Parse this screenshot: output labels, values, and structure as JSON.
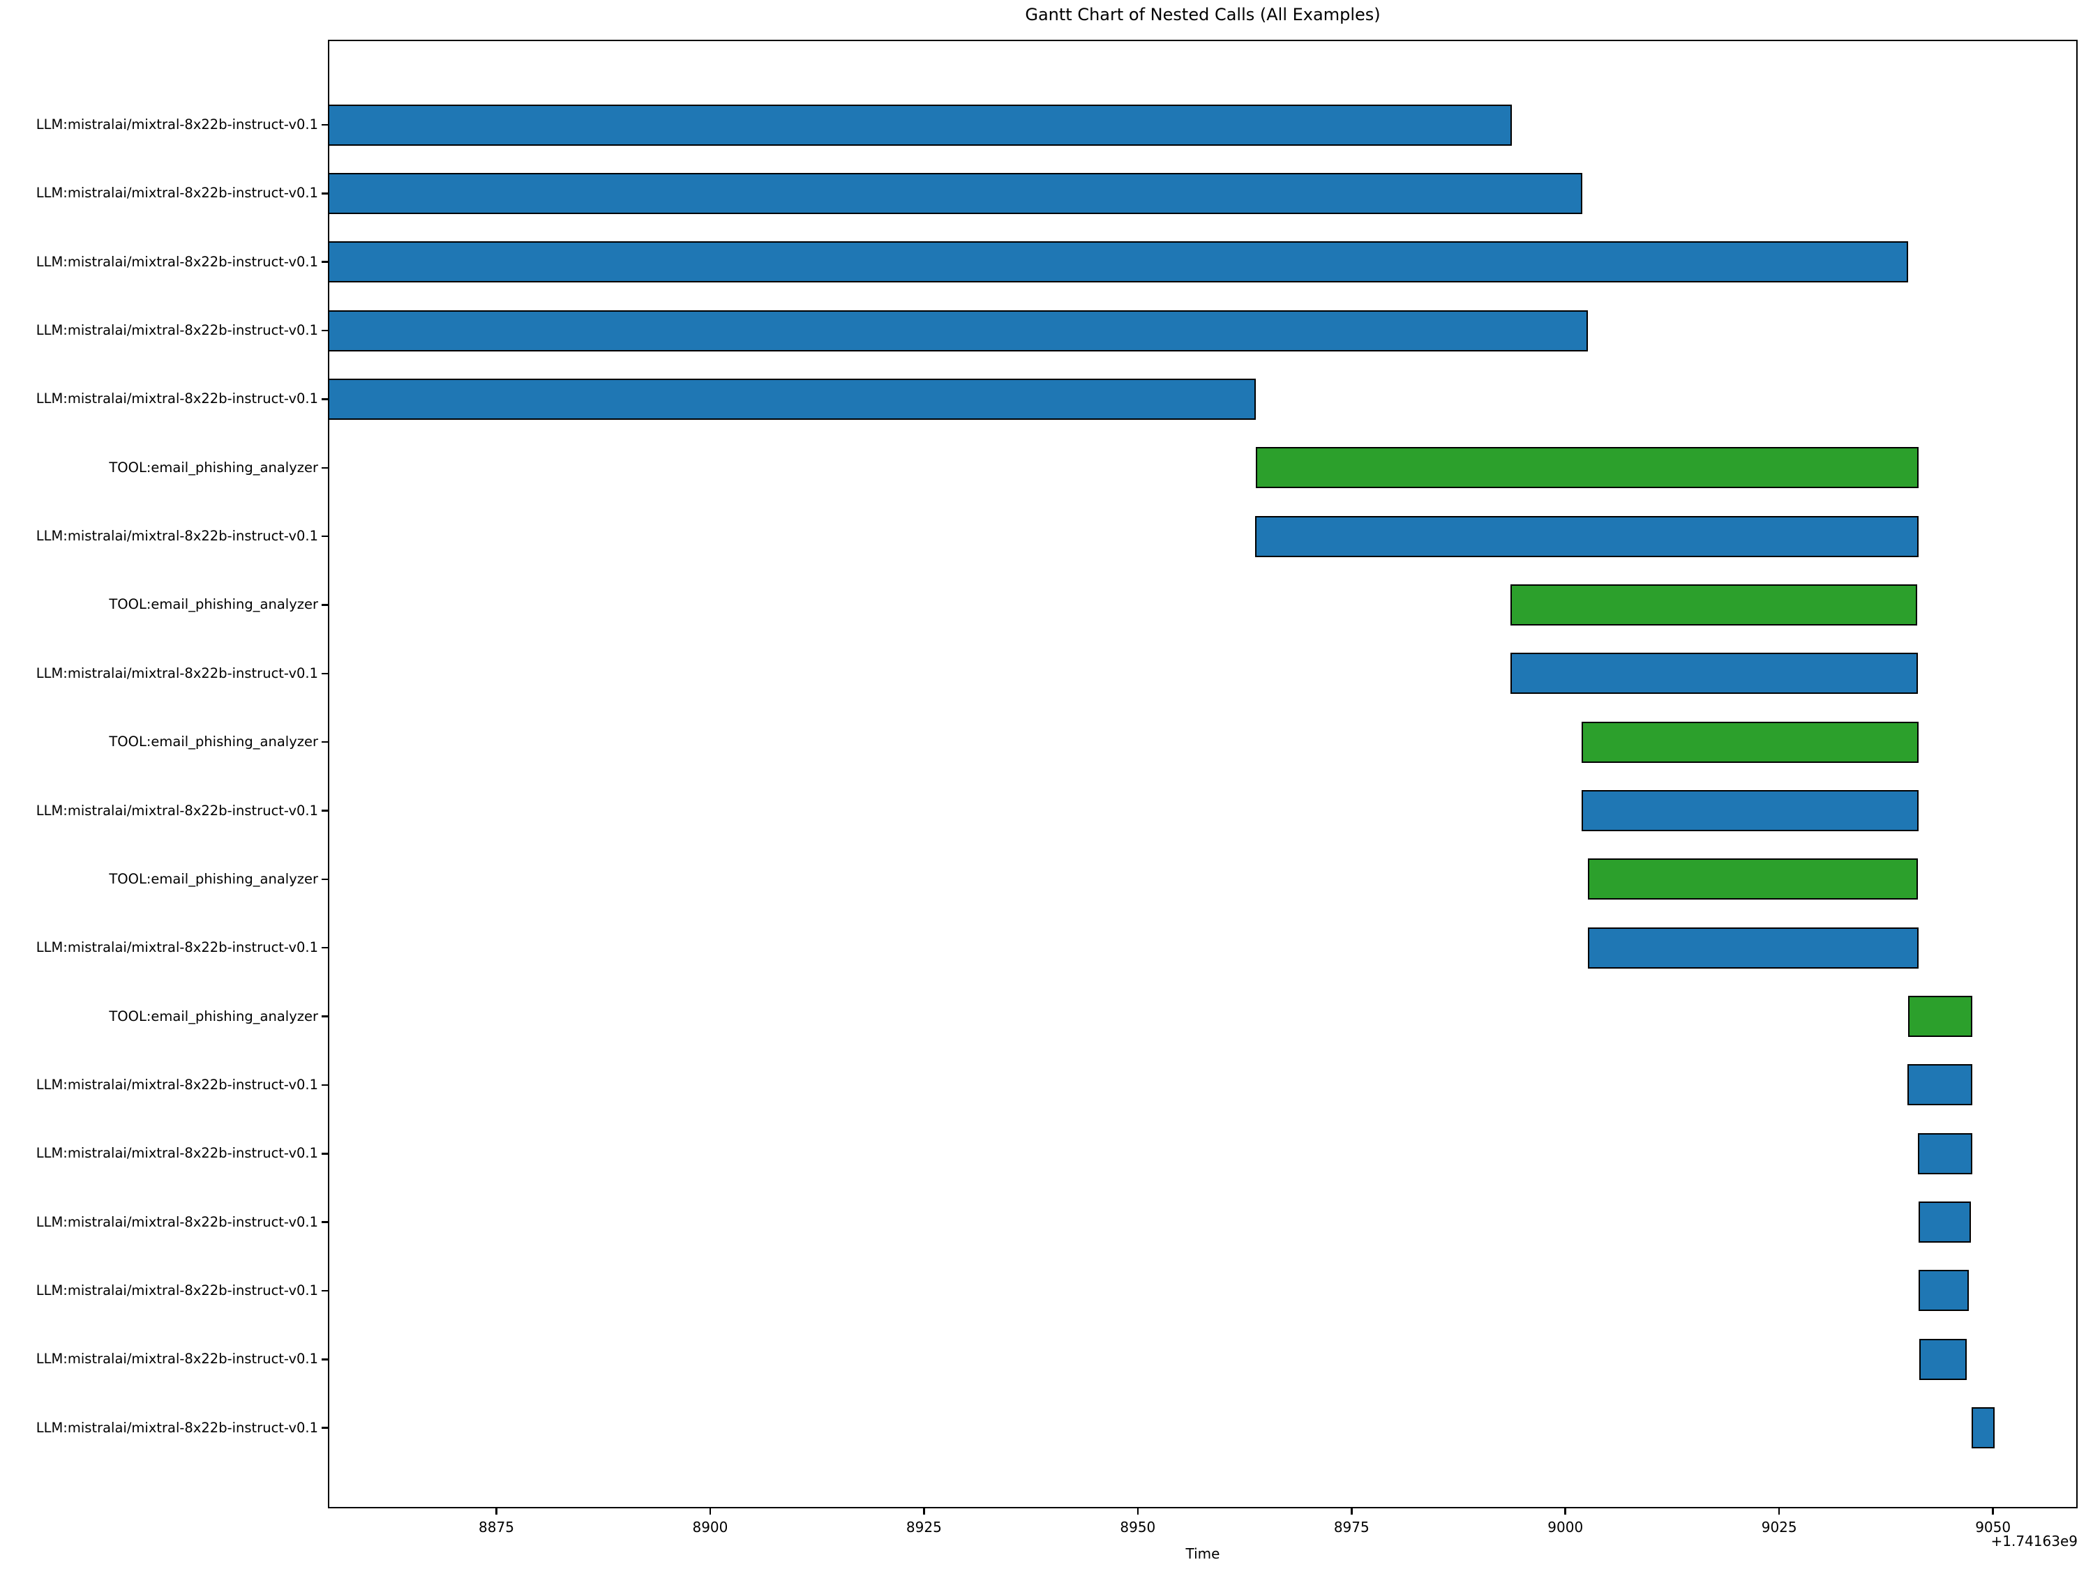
{
  "figure": {
    "title": "Gantt Chart of Nested Calls (All Examples)",
    "xlabel": "Time",
    "offset_text": "+1.74163e9"
  },
  "chart_data": {
    "type": "bar",
    "subtype": "gantt-horizontal",
    "title": "Gantt Chart of Nested Calls (All Examples)",
    "xlabel": "Time",
    "ylabel": "",
    "x_offset_text": "+1.74163e9",
    "x_offset_base": 1741630000,
    "xlim": [
      8855.3,
      9059.9
    ],
    "xticks": [
      8875,
      8900,
      8925,
      8950,
      8975,
      9000,
      9025,
      9050
    ],
    "grid": false,
    "legend_position": "none",
    "colors": {
      "LLM": "#1f77b4",
      "TOOL": "#2ca02c",
      "bar_edge": "#000000",
      "axes": "#000000",
      "background": "#ffffff"
    },
    "rows": [
      {
        "label": "LLM:mistralai/mixtral-8x22b-instruct-v0.1",
        "kind": "LLM",
        "start": 8855.3,
        "end": 8993.7
      },
      {
        "label": "LLM:mistralai/mixtral-8x22b-instruct-v0.1",
        "kind": "LLM",
        "start": 8855.3,
        "end": 9002.0
      },
      {
        "label": "LLM:mistralai/mixtral-8x22b-instruct-v0.1",
        "kind": "LLM",
        "start": 8855.3,
        "end": 9040.1
      },
      {
        "label": "LLM:mistralai/mixtral-8x22b-instruct-v0.1",
        "kind": "LLM",
        "start": 8855.3,
        "end": 9002.6
      },
      {
        "label": "LLM:mistralai/mixtral-8x22b-instruct-v0.1",
        "kind": "LLM",
        "start": 8855.3,
        "end": 8963.8
      },
      {
        "label": "TOOL:email_phishing_analyzer",
        "kind": "TOOL",
        "start": 8963.8,
        "end": 9041.3
      },
      {
        "label": "LLM:mistralai/mixtral-8x22b-instruct-v0.1",
        "kind": "LLM",
        "start": 8963.7,
        "end": 9041.3
      },
      {
        "label": "TOOL:email_phishing_analyzer",
        "kind": "TOOL",
        "start": 8993.6,
        "end": 9041.1
      },
      {
        "label": "LLM:mistralai/mixtral-8x22b-instruct-v0.1",
        "kind": "LLM",
        "start": 8993.6,
        "end": 9041.2
      },
      {
        "label": "TOOL:email_phishing_analyzer",
        "kind": "TOOL",
        "start": 9001.9,
        "end": 9041.3
      },
      {
        "label": "LLM:mistralai/mixtral-8x22b-instruct-v0.1",
        "kind": "LLM",
        "start": 9001.9,
        "end": 9041.3
      },
      {
        "label": "TOOL:email_phishing_analyzer",
        "kind": "TOOL",
        "start": 9002.6,
        "end": 9041.2
      },
      {
        "label": "LLM:mistralai/mixtral-8x22b-instruct-v0.1",
        "kind": "LLM",
        "start": 9002.6,
        "end": 9041.3
      },
      {
        "label": "TOOL:email_phishing_analyzer",
        "kind": "TOOL",
        "start": 9040.1,
        "end": 9047.6
      },
      {
        "label": "LLM:mistralai/mixtral-8x22b-instruct-v0.1",
        "kind": "LLM",
        "start": 9040.0,
        "end": 9047.6
      },
      {
        "label": "LLM:mistralai/mixtral-8x22b-instruct-v0.1",
        "kind": "LLM",
        "start": 9041.2,
        "end": 9047.6
      },
      {
        "label": "LLM:mistralai/mixtral-8x22b-instruct-v0.1",
        "kind": "LLM",
        "start": 9041.3,
        "end": 9047.4
      },
      {
        "label": "LLM:mistralai/mixtral-8x22b-instruct-v0.1",
        "kind": "LLM",
        "start": 9041.3,
        "end": 9047.2
      },
      {
        "label": "LLM:mistralai/mixtral-8x22b-instruct-v0.1",
        "kind": "LLM",
        "start": 9041.4,
        "end": 9046.9
      },
      {
        "label": "LLM:mistralai/mixtral-8x22b-instruct-v0.1",
        "kind": "LLM",
        "start": 9047.5,
        "end": 9050.2
      }
    ]
  }
}
